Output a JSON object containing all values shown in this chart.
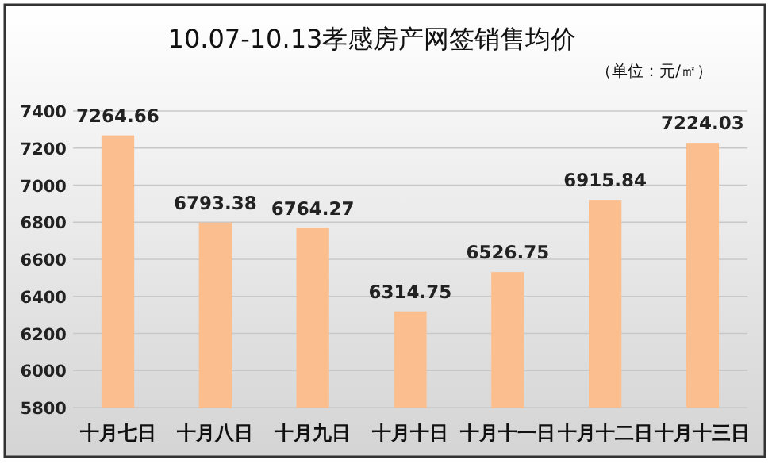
{
  "chart_data": {
    "type": "bar",
    "title": "10.07-10.13孝感房产网签销售均价",
    "subtitle": "（单位：元/㎡）",
    "categories": [
      "十月七日",
      "十月八日",
      "十月九日",
      "十月十日",
      "十月十一日",
      "十月十二日",
      "十月十三日"
    ],
    "values": [
      7264.66,
      6793.38,
      6764.27,
      6314.75,
      6526.75,
      6915.84,
      7224.03
    ],
    "color": "#fbbf8f",
    "ylim": [
      5800,
      7400
    ],
    "yticks": [
      5800,
      6000,
      6200,
      6400,
      6600,
      6800,
      7000,
      7200,
      7400
    ],
    "grid": "y",
    "data_labels": true
  }
}
